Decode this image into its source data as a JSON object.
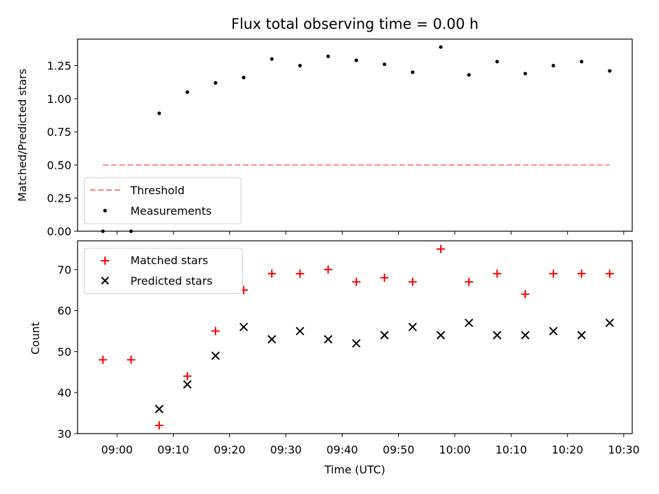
{
  "chart_data": {
    "type": "scatter",
    "title": "Flux total observing time = 0.00 h",
    "xlabel": "Time (UTC)",
    "x_ticks": [
      "09:00",
      "09:10",
      "09:20",
      "09:30",
      "09:40",
      "09:50",
      "10:00",
      "10:10",
      "10:20",
      "10:30"
    ],
    "x": [
      "08:57:30",
      "09:02:30",
      "09:07:30",
      "09:12:30",
      "09:17:30",
      "09:22:30",
      "09:27:30",
      "09:32:30",
      "09:37:30",
      "09:42:30",
      "09:47:30",
      "09:52:30",
      "09:57:30",
      "10:02:30",
      "10:07:30",
      "10:12:30",
      "10:17:30",
      "10:22:30",
      "10:27:30"
    ],
    "xlim": [
      "08:53:00",
      "10:31:30"
    ],
    "panels": [
      {
        "ylabel": "Matched/Predicted stars",
        "ylim": [
          0,
          1.45
        ],
        "y_ticks": [
          "0.00",
          "0.25",
          "0.50",
          "0.75",
          "1.00",
          "1.25"
        ],
        "legend_position": "lower-left",
        "series": [
          {
            "name": "Threshold",
            "style": "dashed-line",
            "color": "#ff7f7f",
            "x_range": [
              "08:57:30",
              "10:27:30"
            ],
            "values": [
              0.5,
              0.5
            ]
          },
          {
            "name": "Measurements",
            "style": "dot",
            "color": "#000000",
            "values": [
              0.0,
              0.0,
              0.89,
              1.05,
              1.12,
              1.16,
              1.3,
              1.25,
              1.32,
              1.29,
              1.26,
              1.2,
              1.39,
              1.18,
              1.28,
              1.19,
              1.25,
              1.28,
              1.21
            ]
          }
        ]
      },
      {
        "ylabel": "Count",
        "ylim": [
          30,
          77
        ],
        "y_ticks": [
          "30",
          "40",
          "50",
          "60",
          "70"
        ],
        "legend_position": "upper-left",
        "series": [
          {
            "name": "Matched stars",
            "style": "plus",
            "color": "#ff0000",
            "values": [
              48,
              48,
              32,
              44,
              55,
              65,
              69,
              69,
              70,
              67,
              68,
              67,
              75,
              67,
              69,
              64,
              69,
              69,
              69
            ]
          },
          {
            "name": "Predicted stars",
            "style": "x",
            "color": "#000000",
            "values": [
              null,
              null,
              36,
              42,
              49,
              56,
              53,
              55,
              53,
              52,
              54,
              56,
              54,
              57,
              54,
              54,
              55,
              54,
              57
            ]
          }
        ]
      }
    ]
  }
}
